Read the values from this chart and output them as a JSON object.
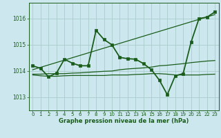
{
  "bg_color": "#cce8ee",
  "grid_color": "#aacccc",
  "line_color": "#1a5c1a",
  "xlabel": "Graphe pression niveau de la mer (hPa)",
  "xlim": [
    -0.5,
    23.5
  ],
  "ylim": [
    1012.5,
    1016.6
  ],
  "yticks": [
    1013,
    1014,
    1015,
    1016
  ],
  "xticks": [
    0,
    1,
    2,
    3,
    4,
    5,
    6,
    7,
    8,
    9,
    10,
    11,
    12,
    13,
    14,
    15,
    16,
    17,
    18,
    19,
    20,
    21,
    22,
    23
  ],
  "series": [
    {
      "x": [
        0,
        1,
        2,
        3,
        4,
        5,
        6,
        7,
        8,
        9,
        10,
        11,
        12,
        13,
        14,
        15,
        16,
        17,
        18,
        19,
        20,
        21,
        22,
        23
      ],
      "y": [
        1013.85,
        1013.82,
        1013.8,
        1013.8,
        1013.82,
        1013.83,
        1013.83,
        1013.83,
        1013.83,
        1013.83,
        1013.85,
        1013.85,
        1013.85,
        1013.87,
        1013.88,
        1013.9,
        1013.9,
        1013.88,
        1013.85,
        1013.85,
        1013.85,
        1013.85,
        1013.87,
        1013.88
      ],
      "marker": null,
      "linewidth": 0.9
    },
    {
      "x": [
        0,
        1,
        2,
        3,
        4,
        5,
        6,
        7,
        8,
        9,
        10,
        11,
        12,
        13,
        14,
        15,
        16,
        17,
        18,
        19,
        20,
        21,
        22,
        23
      ],
      "y": [
        1013.88,
        1013.88,
        1013.9,
        1013.9,
        1013.9,
        1013.92,
        1013.93,
        1013.95,
        1013.97,
        1013.99,
        1014.0,
        1014.05,
        1014.08,
        1014.1,
        1014.12,
        1014.15,
        1014.2,
        1014.22,
        1014.25,
        1014.28,
        1014.32,
        1014.35,
        1014.38,
        1014.4
      ],
      "marker": null,
      "linewidth": 0.9
    },
    {
      "x": [
        0,
        23
      ],
      "y": [
        1014.05,
        1016.15
      ],
      "marker": null,
      "linewidth": 0.9
    },
    {
      "x": [
        0,
        1,
        2,
        3,
        4,
        5,
        6,
        7,
        8,
        9,
        10,
        11,
        12,
        13,
        14,
        15,
        16,
        17,
        18,
        19,
        20,
        21,
        22,
        23
      ],
      "y": [
        1014.2,
        1014.1,
        1013.78,
        1013.92,
        1014.45,
        1014.3,
        1014.2,
        1014.2,
        1015.55,
        1015.2,
        1015.0,
        1014.52,
        1014.47,
        1014.45,
        1014.28,
        1014.05,
        1013.65,
        1013.1,
        1013.82,
        1013.9,
        1015.1,
        1016.0,
        1016.05,
        1016.25
      ],
      "marker": "s",
      "linewidth": 1.3,
      "markersize": 2.2
    }
  ]
}
